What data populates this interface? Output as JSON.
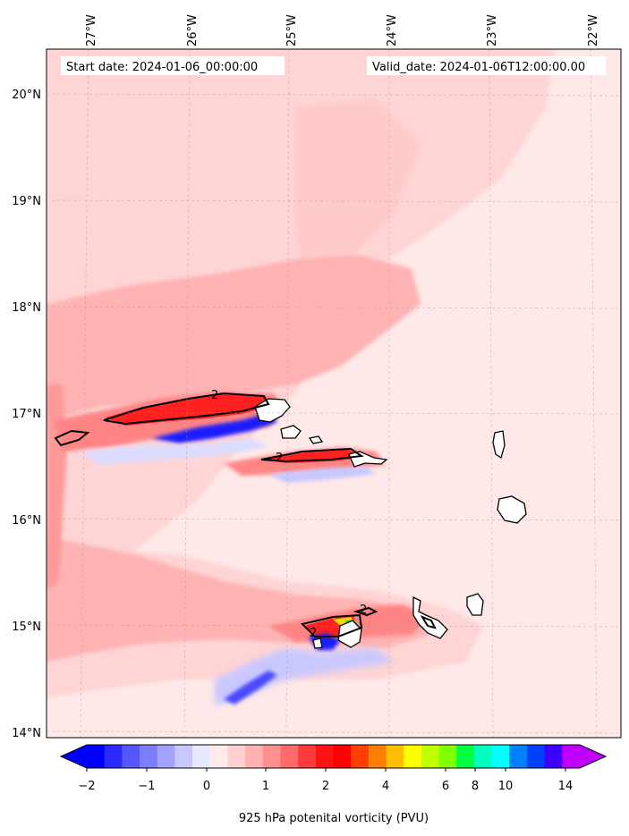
{
  "header": {
    "start_date": "Start date: 2024-01-06_00:00:00",
    "valid_date": "Valid_date: 2024-01-06T12:00:00.00"
  },
  "axes": {
    "lon_labels": [
      "27°W",
      "26°W",
      "25°W",
      "24°W",
      "23°W",
      "22°W"
    ],
    "lat_labels": [
      "20°N",
      "19°N",
      "18°N",
      "17°N",
      "16°N",
      "15°N",
      "14°N"
    ]
  },
  "colorbar": {
    "tick_labels": [
      "−2",
      "−1",
      "0",
      "1",
      "2",
      "4",
      "6",
      "8",
      "10",
      "14"
    ],
    "label": "925 hPa potenital vorticity (PVU)",
    "colors": [
      "#0000ff",
      "#2b2bff",
      "#5656ff",
      "#7d7dff",
      "#a2a2ff",
      "#c8c8ff",
      "#e8e8ff",
      "#ffeaea",
      "#ffd0d0",
      "#ffb0b0",
      "#ff8e8e",
      "#ff6a6a",
      "#ff3c3c",
      "#ff1414",
      "#ff0000",
      "#ff4000",
      "#ff8000",
      "#ffbf00",
      "#ffff00",
      "#bfff00",
      "#80ff00",
      "#00ff40",
      "#00ffbf",
      "#00ffff",
      "#0080ff",
      "#0040ff",
      "#4000ff",
      "#bf00ff"
    ]
  },
  "map": {
    "contour_label": "2",
    "fill_colors": {
      "background": "#ffe8e8",
      "light": "#ffd4d4",
      "medium": "#ffb3b3",
      "strong": "#ff8585",
      "red": "#ff2020",
      "blue": "#1a1aff",
      "pale_blue": "#dcdcff"
    }
  }
}
